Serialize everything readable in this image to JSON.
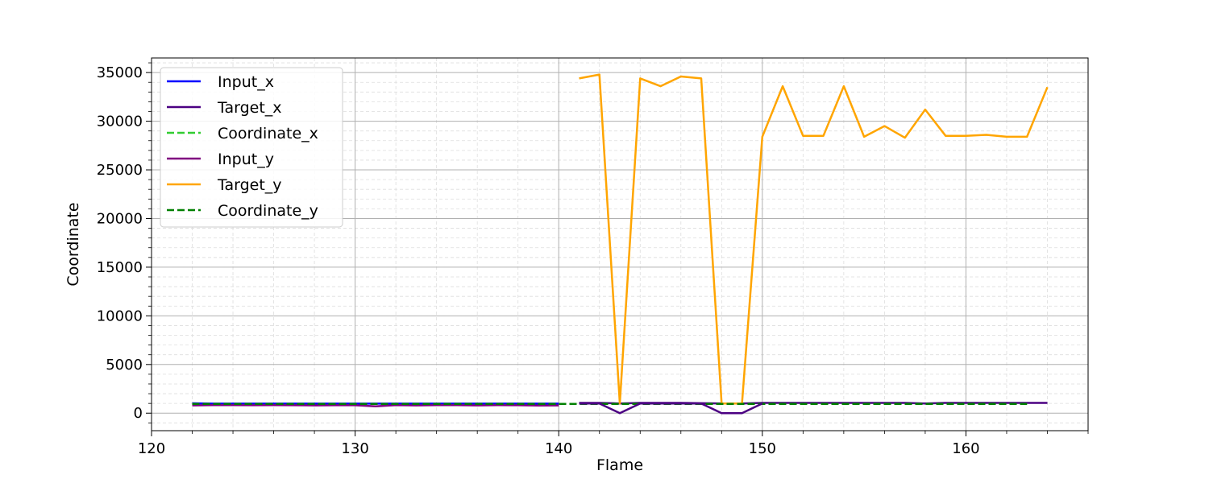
{
  "chart_data": {
    "type": "line",
    "title": "",
    "xlabel": "Flame",
    "ylabel": "Coordinate",
    "xlim": [
      120,
      166
    ],
    "ylim": [
      -1800,
      36500
    ],
    "xticks": [
      120,
      130,
      140,
      150,
      160
    ],
    "xtick_labels": [
      "120",
      "130",
      "140",
      "150",
      "160"
    ],
    "yticks": [
      0,
      5000,
      10000,
      15000,
      20000,
      25000,
      30000,
      35000
    ],
    "ytick_labels": [
      "0",
      "5000",
      "10000",
      "15000",
      "20000",
      "25000",
      "30000",
      "35000"
    ],
    "grid": "major solid, minor dashed",
    "legend_position": "upper-left",
    "series": [
      {
        "name": "Input_x",
        "color": "#0000ff",
        "style": "solid",
        "x": [
          122,
          123,
          124,
          125,
          126,
          127,
          128,
          129,
          130,
          131,
          132,
          133,
          134,
          135,
          136,
          137,
          138,
          139,
          140
        ],
        "y": [
          1010,
          980,
          980,
          980,
          980,
          980,
          980,
          980,
          980,
          980,
          980,
          980,
          980,
          980,
          980,
          980,
          980,
          980,
          980
        ]
      },
      {
        "name": "Target_x",
        "color": "#4b0082",
        "style": "solid",
        "x": [
          141,
          142,
          143,
          144,
          145,
          146,
          147,
          148,
          149,
          150,
          151,
          152,
          153,
          154,
          155,
          156,
          157,
          158,
          159,
          160,
          161,
          162,
          163,
          164
        ],
        "y": [
          1050,
          1050,
          1000,
          1050,
          1050,
          1050,
          1020,
          1000,
          1000,
          1050,
          1050,
          1050,
          1050,
          1050,
          1050,
          1050,
          1050,
          1000,
          1050,
          1050,
          1050,
          1050,
          1050,
          1050
        ]
      },
      {
        "name": "Coordinate_x",
        "color": "#32cd32",
        "style": "dashed",
        "x": [
          122,
          124,
          126,
          128,
          130,
          132,
          134,
          136,
          138,
          140,
          142,
          144,
          146,
          148,
          150,
          152,
          154,
          156,
          158,
          160,
          162,
          163
        ],
        "y": [
          950,
          950,
          950,
          950,
          950,
          950,
          950,
          950,
          950,
          950,
          950,
          950,
          950,
          950,
          950,
          950,
          950,
          950,
          950,
          950,
          950,
          950
        ]
      },
      {
        "name": "Input_y",
        "color": "#800080",
        "style": "solid",
        "x": [
          122,
          123,
          124,
          125,
          126,
          127,
          128,
          129,
          130,
          131,
          132,
          133,
          134,
          135,
          136,
          137,
          138,
          139,
          140
        ],
        "y": [
          800,
          820,
          820,
          810,
          820,
          810,
          800,
          810,
          810,
          700,
          820,
          800,
          820,
          820,
          800,
          820,
          810,
          790,
          800
        ]
      },
      {
        "name": "Target_y",
        "color": "#ffa500",
        "style": "solid",
        "x": [
          141,
          142,
          143,
          144,
          145,
          146,
          147,
          148,
          149,
          150,
          151,
          152,
          153,
          154,
          155,
          156,
          157,
          158,
          159,
          160,
          161,
          162,
          163,
          164
        ],
        "y": [
          34400,
          34800,
          1000,
          34400,
          33600,
          34600,
          34400,
          1000,
          1000,
          28400,
          33600,
          28500,
          28500,
          33600,
          28400,
          29500,
          28300,
          31200,
          28500,
          28500,
          28600,
          28400,
          28400,
          33500
        ]
      },
      {
        "name": "Coordinate_y",
        "color": "#008000",
        "style": "dashed",
        "x": [
          122,
          124,
          126,
          128,
          130,
          132,
          134,
          136,
          138,
          140,
          142,
          144,
          146,
          148,
          150,
          152,
          154,
          156,
          158,
          160,
          162,
          163
        ],
        "y": [
          950,
          950,
          950,
          950,
          950,
          950,
          950,
          950,
          950,
          950,
          950,
          950,
          950,
          950,
          950,
          950,
          950,
          950,
          950,
          950,
          950,
          950
        ]
      },
      {
        "name": "",
        "color": "#4b0082",
        "style": "solid",
        "x": [
          141,
          142,
          143,
          144,
          145,
          146,
          147,
          148,
          149,
          150
        ],
        "y": [
          1000,
          1000,
          0,
          1000,
          1000,
          1000,
          1000,
          0,
          0,
          1000
        ]
      }
    ]
  }
}
